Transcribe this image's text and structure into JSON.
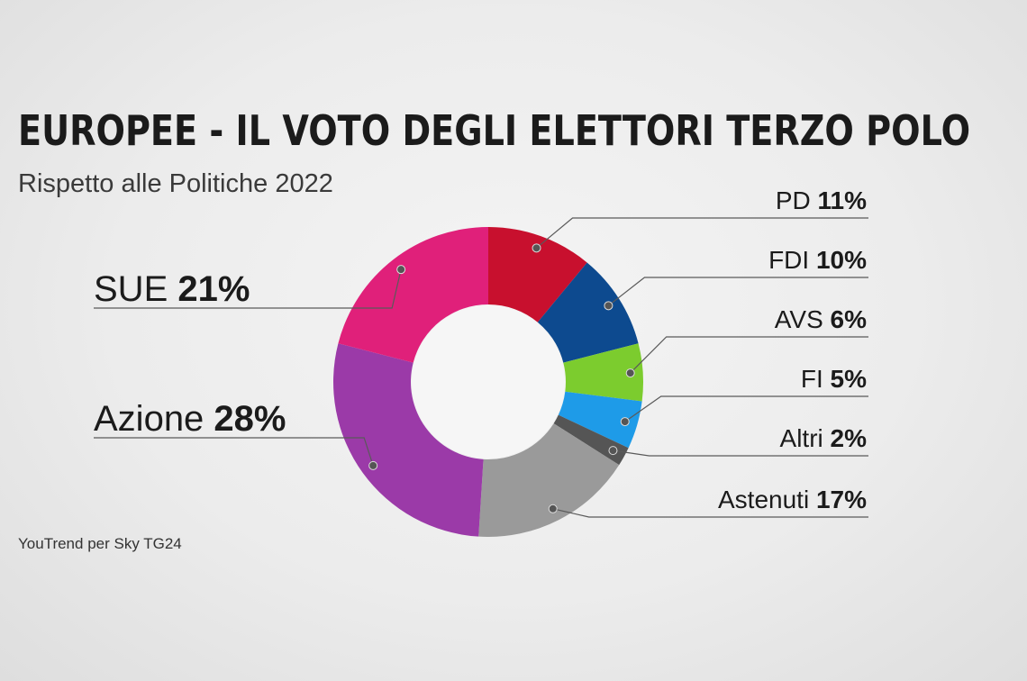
{
  "header": {
    "title": "EUROPEE - IL VOTO DEGLI ELETTORI TERZO POLO",
    "subtitle": "Rispetto alle Politiche 2022"
  },
  "footer": {
    "source": "YouTrend per Sky TG24"
  },
  "chart_data": {
    "type": "pie",
    "style": "donut",
    "title": "EUROPEE - IL VOTO DEGLI ELETTORI TERZO POLO",
    "subtitle": "Rispetto alle Politiche 2022",
    "slices": [
      {
        "name": "PD",
        "value": 11,
        "label": "11%",
        "color": "#c8102e",
        "side": "right"
      },
      {
        "name": "FDI",
        "value": 10,
        "label": "10%",
        "color": "#0d4a8f",
        "side": "right"
      },
      {
        "name": "AVS",
        "value": 6,
        "label": "6%",
        "color": "#7ccc2e",
        "side": "right"
      },
      {
        "name": "FI",
        "value": 5,
        "label": "5%",
        "color": "#1e9be8",
        "side": "right"
      },
      {
        "name": "Altri",
        "value": 2,
        "label": "2%",
        "color": "#555555",
        "side": "right"
      },
      {
        "name": "Astenuti",
        "value": 17,
        "label": "17%",
        "color": "#9a9a9a",
        "side": "right"
      },
      {
        "name": "Azione",
        "value": 28,
        "label": "28%",
        "color": "#9b3aa8",
        "side": "left"
      },
      {
        "name": "SUE",
        "value": 21,
        "label": "21%",
        "color": "#e0207a",
        "side": "left"
      }
    ]
  }
}
